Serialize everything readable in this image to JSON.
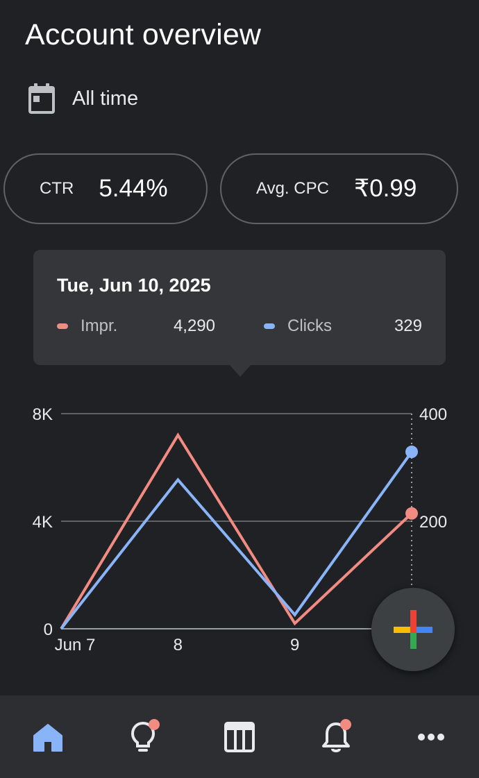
{
  "header": {
    "title": "Account overview"
  },
  "date_filter": {
    "icon": "calendar-icon",
    "label": "All time"
  },
  "metrics": [
    {
      "name": "CTR",
      "value": "5.44%"
    },
    {
      "name": "Avg. CPC",
      "value": "₹0.99"
    }
  ],
  "tooltip": {
    "date": "Tue, Jun 10, 2025",
    "series": [
      {
        "name": "Impr.",
        "value": "4,290",
        "color": "#f28b82"
      },
      {
        "name": "Clicks",
        "value": "329",
        "color": "#8ab4f8"
      }
    ]
  },
  "chart_data": {
    "type": "line",
    "categories": [
      "Jun 7",
      "8",
      "9",
      "10"
    ],
    "x_tick_labels": [
      "Jun 7",
      "8",
      "9",
      ""
    ],
    "series": [
      {
        "name": "Impr.",
        "axis": "left",
        "values": [
          0,
          7200,
          200,
          4290
        ],
        "color": "#f28b82"
      },
      {
        "name": "Clicks",
        "axis": "right",
        "values": [
          0,
          277,
          26,
          329
        ],
        "color": "#8ab4f8"
      }
    ],
    "y_left": {
      "ticks": [
        "0",
        "4K",
        "8K"
      ],
      "range": [
        0,
        8000
      ]
    },
    "y_right": {
      "ticks": [
        "200",
        "400"
      ],
      "range": [
        0,
        400
      ]
    },
    "grid": true,
    "highlighted_index": 3
  },
  "fab": {
    "icon": "plus-icon"
  },
  "bottom_nav": {
    "items": [
      {
        "icon": "home-icon",
        "active": true
      },
      {
        "icon": "lightbulb-icon",
        "badge": true
      },
      {
        "icon": "table-icon"
      },
      {
        "icon": "bell-icon",
        "badge": true
      },
      {
        "icon": "more-icon"
      }
    ]
  },
  "colors": {
    "background": "#202124",
    "card": "#35363a",
    "nav": "#2d2e31",
    "accent_blue": "#8ab4f8",
    "accent_red": "#f28b82",
    "badge": "#f28b82"
  }
}
